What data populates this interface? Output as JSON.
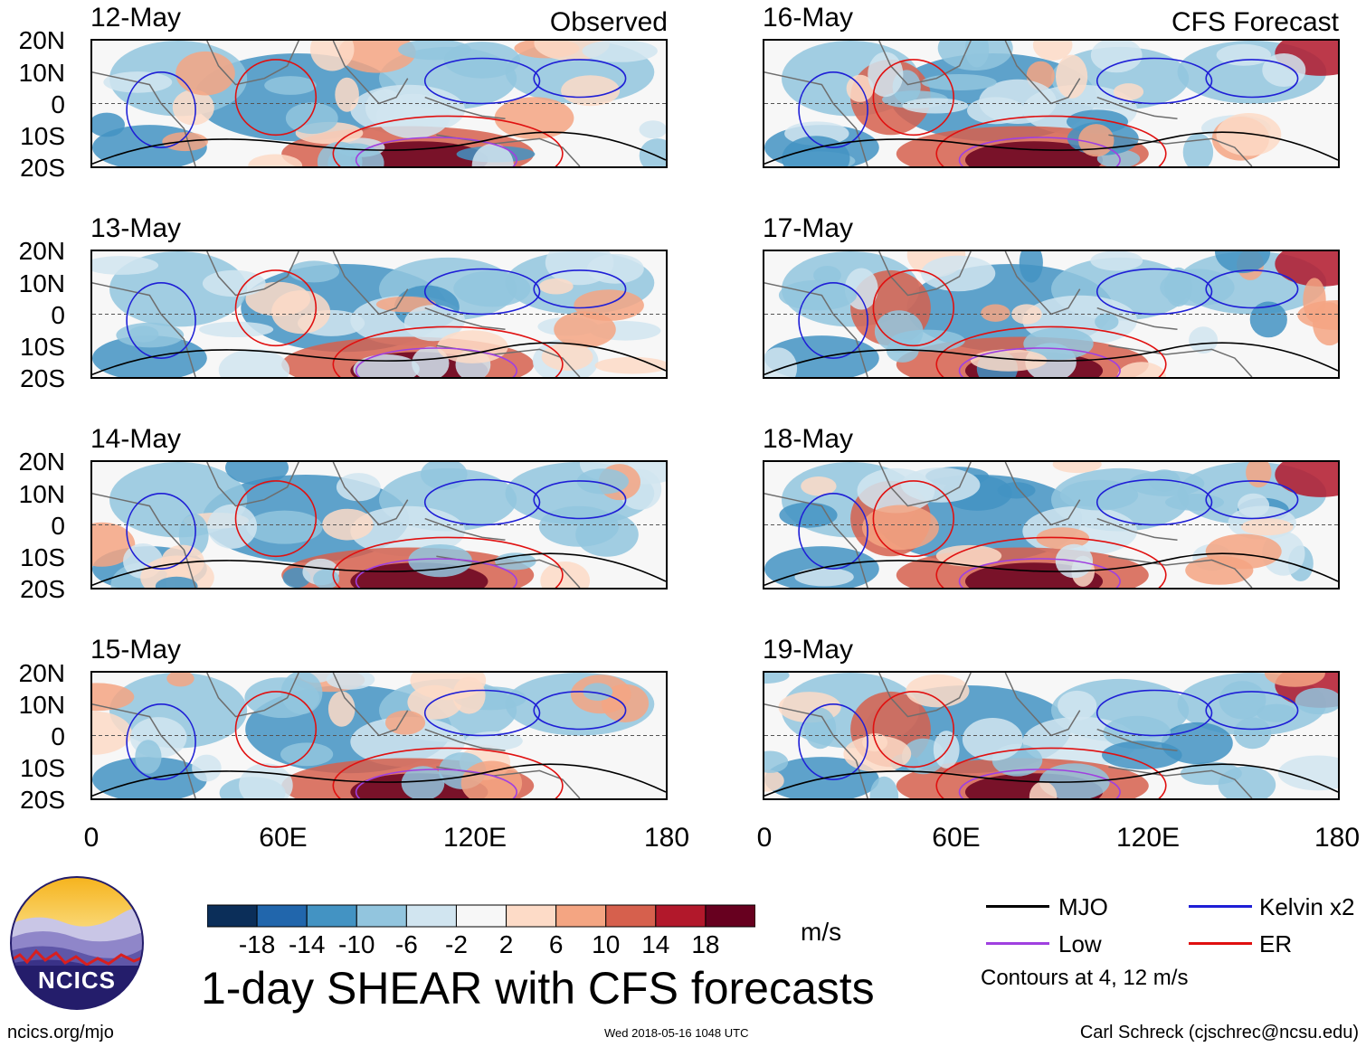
{
  "title": "1-day SHEAR with CFS forecasts",
  "units": "m/s",
  "left_column_label": "Observed",
  "right_column_label": "CFS Forecast",
  "panels_left": [
    {
      "date": "12-May"
    },
    {
      "date": "13-May"
    },
    {
      "date": "14-May"
    },
    {
      "date": "15-May"
    }
  ],
  "panels_right": [
    {
      "date": "16-May"
    },
    {
      "date": "17-May"
    },
    {
      "date": "18-May"
    },
    {
      "date": "19-May"
    }
  ],
  "lat_labels": [
    "20N",
    "10N",
    "0",
    "10S",
    "20S"
  ],
  "lon_labels": [
    "0",
    "60E",
    "120E",
    "180"
  ],
  "colorbar": {
    "colors": [
      "#0b2e59",
      "#2166ac",
      "#4393c3",
      "#92c5de",
      "#d1e5f0",
      "#f7f7f7",
      "#fddbc7",
      "#f4a582",
      "#d6604d",
      "#b2182b",
      "#67001f"
    ],
    "labels": [
      "-18",
      "-14",
      "-10",
      "-6",
      "-2",
      "2",
      "6",
      "10",
      "14",
      "18"
    ]
  },
  "legend": {
    "items": [
      {
        "label": "MJO",
        "color": "#000000"
      },
      {
        "label": "Kelvin x2",
        "color": "#1f1fd6"
      },
      {
        "label": "Low",
        "color": "#a040e0"
      },
      {
        "label": "ER",
        "color": "#e01010"
      }
    ],
    "note": "Contours at 4, 12 m/s"
  },
  "logo": {
    "text": "NCICS"
  },
  "footer": {
    "left": "ncics.org/mjo",
    "center": "Wed 2018-05-16 1048 UTC",
    "right": "Carl Schreck (cjschrec@ncsu.edu)"
  }
}
